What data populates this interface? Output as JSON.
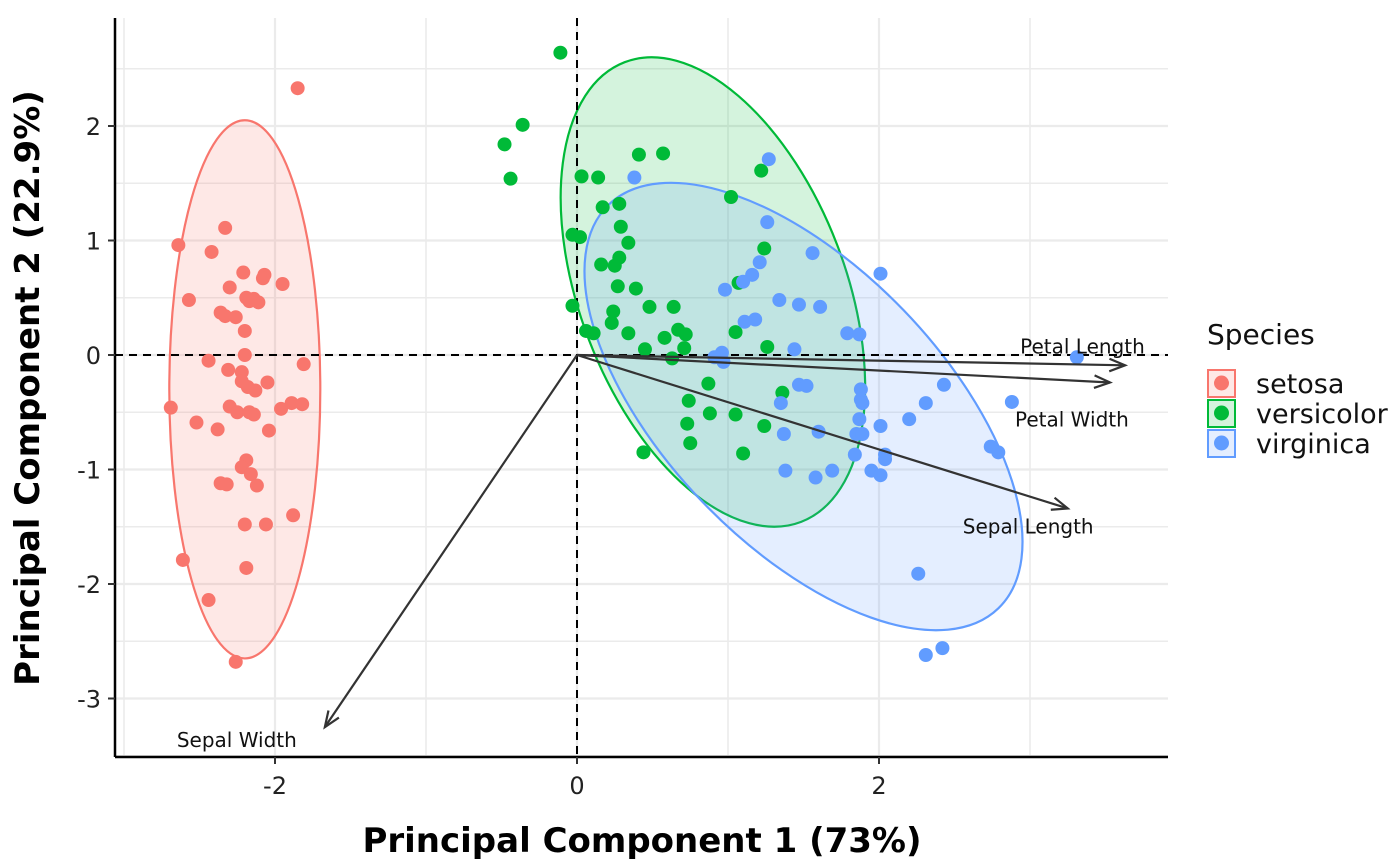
{
  "chart_data": {
    "type": "scatter",
    "title": "",
    "xlabel": "Principal Component 1 (73%)",
    "ylabel": "Principal Component 2 (22.9%)",
    "xlim": [
      -3.1,
      3.9
    ],
    "ylim": [
      -3.5,
      2.95
    ],
    "x_ticks": [
      -2,
      0,
      2
    ],
    "x_tick_labels": [
      "-2",
      "0",
      "2"
    ],
    "y_ticks": [
      -3,
      -2,
      -1,
      0,
      1,
      2
    ],
    "y_tick_labels": [
      "-3",
      "-2",
      "-1",
      "0",
      "1",
      "2"
    ],
    "grid": true,
    "reference_lines": {
      "x": 0,
      "y": 0,
      "style": "dashed"
    },
    "legend": {
      "title": "Species",
      "position": "right"
    },
    "series": [
      {
        "name": "setosa",
        "color": "#F8766D",
        "ellipse": {
          "center": [
            -2.2,
            -0.3
          ],
          "semi_axes": [
            0.5,
            2.35
          ],
          "rotation_deg": 0
        },
        "points": [
          [
            -1.85,
            2.33
          ],
          [
            -2.33,
            1.11
          ],
          [
            -2.64,
            0.96
          ],
          [
            -2.42,
            0.9
          ],
          [
            -2.21,
            0.72
          ],
          [
            -2.07,
            0.7
          ],
          [
            -2.08,
            0.67
          ],
          [
            -1.95,
            0.62
          ],
          [
            -2.3,
            0.59
          ],
          [
            -2.57,
            0.48
          ],
          [
            -2.19,
            0.5
          ],
          [
            -2.14,
            0.49
          ],
          [
            -2.11,
            0.46
          ],
          [
            -2.17,
            0.47
          ],
          [
            -2.36,
            0.37
          ],
          [
            -2.33,
            0.34
          ],
          [
            -2.26,
            0.33
          ],
          [
            -2.2,
            0.21
          ],
          [
            -2.2,
            0.0
          ],
          [
            -2.44,
            -0.05
          ],
          [
            -1.81,
            -0.08
          ],
          [
            -2.31,
            -0.13
          ],
          [
            -2.22,
            -0.15
          ],
          [
            -2.22,
            -0.23
          ],
          [
            -2.05,
            -0.24
          ],
          [
            -2.18,
            -0.28
          ],
          [
            -2.13,
            -0.31
          ],
          [
            -2.69,
            -0.46
          ],
          [
            -2.3,
            -0.45
          ],
          [
            -2.25,
            -0.5
          ],
          [
            -2.17,
            -0.5
          ],
          [
            -2.14,
            -0.52
          ],
          [
            -1.89,
            -0.42
          ],
          [
            -1.82,
            -0.43
          ],
          [
            -1.96,
            -0.47
          ],
          [
            -2.52,
            -0.59
          ],
          [
            -2.38,
            -0.65
          ],
          [
            -2.04,
            -0.66
          ],
          [
            -2.19,
            -0.92
          ],
          [
            -2.22,
            -0.98
          ],
          [
            -2.16,
            -1.04
          ],
          [
            -2.36,
            -1.12
          ],
          [
            -2.32,
            -1.13
          ],
          [
            -2.12,
            -1.14
          ],
          [
            -2.2,
            -1.48
          ],
          [
            -2.06,
            -1.48
          ],
          [
            -1.88,
            -1.4
          ],
          [
            -2.61,
            -1.79
          ],
          [
            -2.19,
            -1.86
          ],
          [
            -2.44,
            -2.14
          ],
          [
            -2.26,
            -2.68
          ]
        ]
      },
      {
        "name": "versicolor",
        "color": "#00BA38",
        "ellipse": {
          "center": [
            0.9,
            0.55
          ],
          "semi_axes": [
            0.88,
            2.15
          ],
          "rotation_deg": -21
        },
        "points": [
          [
            -0.11,
            2.64
          ],
          [
            -0.36,
            2.01
          ],
          [
            -0.48,
            1.84
          ],
          [
            -0.44,
            1.54
          ],
          [
            0.03,
            1.56
          ],
          [
            0.14,
            1.55
          ],
          [
            0.41,
            1.75
          ],
          [
            0.57,
            1.76
          ],
          [
            0.17,
            1.29
          ],
          [
            0.28,
            1.32
          ],
          [
            1.22,
            1.61
          ],
          [
            1.02,
            1.38
          ],
          [
            0.29,
            1.12
          ],
          [
            -0.03,
            1.05
          ],
          [
            0.02,
            1.03
          ],
          [
            0.34,
            0.98
          ],
          [
            1.24,
            0.93
          ],
          [
            0.28,
            0.85
          ],
          [
            0.16,
            0.79
          ],
          [
            0.25,
            0.78
          ],
          [
            1.07,
            0.63
          ],
          [
            0.27,
            0.6
          ],
          [
            0.39,
            0.58
          ],
          [
            0.48,
            0.42
          ],
          [
            0.64,
            0.42
          ],
          [
            -0.03,
            0.43
          ],
          [
            0.24,
            0.38
          ],
          [
            0.23,
            0.28
          ],
          [
            0.06,
            0.21
          ],
          [
            0.11,
            0.19
          ],
          [
            0.34,
            0.19
          ],
          [
            0.67,
            0.22
          ],
          [
            0.72,
            0.18
          ],
          [
            1.05,
            0.2
          ],
          [
            0.58,
            0.15
          ],
          [
            0.45,
            0.05
          ],
          [
            0.71,
            0.06
          ],
          [
            1.26,
            0.07
          ],
          [
            0.63,
            -0.03
          ],
          [
            0.87,
            -0.25
          ],
          [
            1.36,
            -0.33
          ],
          [
            0.74,
            -0.4
          ],
          [
            0.88,
            -0.51
          ],
          [
            1.05,
            -0.52
          ],
          [
            0.73,
            -0.6
          ],
          [
            1.24,
            -0.62
          ],
          [
            0.75,
            -0.77
          ],
          [
            0.44,
            -0.85
          ],
          [
            1.1,
            -0.86
          ]
        ]
      },
      {
        "name": "virginica",
        "color": "#619CFF",
        "ellipse": {
          "center": [
            1.5,
            -0.45
          ],
          "semi_axes": [
            0.92,
            2.45
          ],
          "rotation_deg": -44
        },
        "points": [
          [
            1.27,
            1.71
          ],
          [
            0.38,
            1.55
          ],
          [
            1.26,
            1.16
          ],
          [
            1.56,
            0.89
          ],
          [
            1.21,
            0.81
          ],
          [
            2.01,
            0.71
          ],
          [
            1.16,
            0.7
          ],
          [
            1.1,
            0.64
          ],
          [
            0.98,
            0.57
          ],
          [
            1.34,
            0.48
          ],
          [
            1.47,
            0.44
          ],
          [
            1.61,
            0.42
          ],
          [
            1.18,
            0.31
          ],
          [
            1.11,
            0.29
          ],
          [
            1.79,
            0.19
          ],
          [
            1.87,
            0.18
          ],
          [
            1.44,
            0.05
          ],
          [
            0.96,
            0.02
          ],
          [
            0.91,
            -0.02
          ],
          [
            0.97,
            -0.06
          ],
          [
            3.31,
            -0.02
          ],
          [
            1.47,
            -0.26
          ],
          [
            1.52,
            -0.27
          ],
          [
            2.43,
            -0.26
          ],
          [
            1.88,
            -0.3
          ],
          [
            1.88,
            -0.39
          ],
          [
            1.89,
            -0.42
          ],
          [
            1.35,
            -0.42
          ],
          [
            2.88,
            -0.41
          ],
          [
            2.31,
            -0.42
          ],
          [
            2.2,
            -0.56
          ],
          [
            1.87,
            -0.56
          ],
          [
            1.6,
            -0.67
          ],
          [
            1.37,
            -0.69
          ],
          [
            1.85,
            -0.69
          ],
          [
            1.89,
            -0.69
          ],
          [
            2.01,
            -0.62
          ],
          [
            2.74,
            -0.8
          ],
          [
            2.79,
            -0.85
          ],
          [
            1.84,
            -0.87
          ],
          [
            2.04,
            -0.87
          ],
          [
            2.04,
            -0.91
          ],
          [
            1.38,
            -1.01
          ],
          [
            1.69,
            -1.01
          ],
          [
            1.95,
            -1.01
          ],
          [
            2.01,
            -1.05
          ],
          [
            1.58,
            -1.07
          ],
          [
            2.26,
            -1.91
          ],
          [
            2.31,
            -2.62
          ],
          [
            2.42,
            -2.56
          ]
        ]
      }
    ],
    "loadings": [
      {
        "label": "Petal Length",
        "x": 3.63,
        "y": -0.09
      },
      {
        "label": "Petal Width",
        "x": 3.53,
        "y": -0.24
      },
      {
        "label": "Sepal Length",
        "x": 3.25,
        "y": -1.34
      },
      {
        "label": "Sepal Width",
        "x": -1.67,
        "y": -3.25
      }
    ]
  }
}
